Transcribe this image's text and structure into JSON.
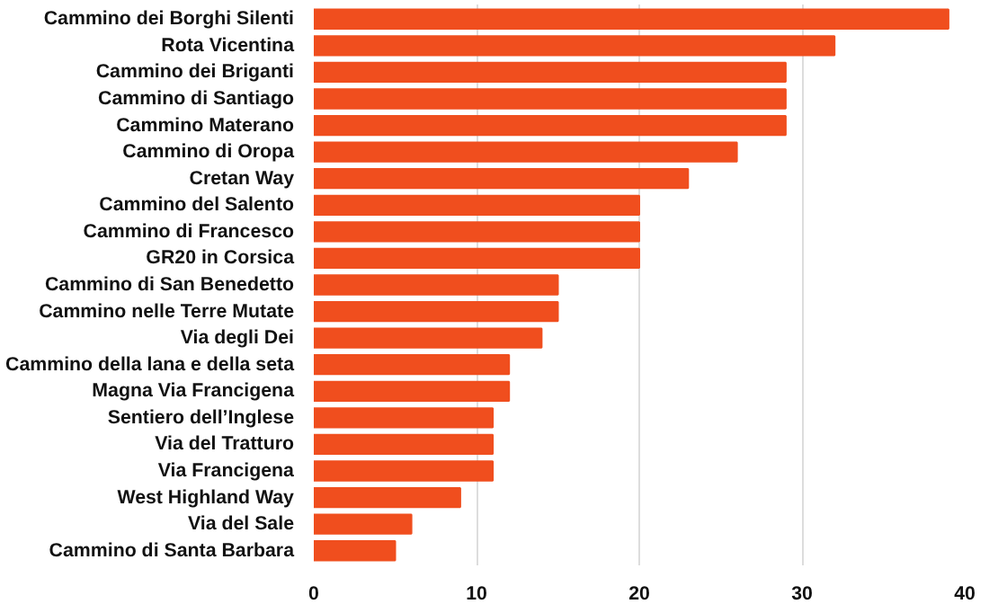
{
  "chart_data": {
    "type": "bar",
    "orientation": "horizontal",
    "categories": [
      "Cammino dei Borghi Silenti",
      "Rota Vicentina",
      "Cammino dei Briganti",
      "Cammino di Santiago",
      "Cammino Materano",
      "Cammino di Oropa",
      "Cretan Way",
      "Cammino del Salento",
      "Cammino di Francesco",
      "GR20 in Corsica",
      "Cammino di San Benedetto",
      "Cammino nelle Terre Mutate",
      "Via degli Dei",
      "Cammino della lana e della seta",
      "Magna Via Francigena",
      "Sentiero dell’Inglese",
      "Via del Tratturo",
      "Via Francigena",
      "West Highland Way",
      "Via del Sale",
      "Cammino di Santa Barbara"
    ],
    "values": [
      39,
      32,
      29,
      29,
      29,
      26,
      23,
      20,
      20,
      20,
      15,
      15,
      14,
      12,
      12,
      11,
      11,
      11,
      9,
      6,
      5
    ],
    "color": "#f04e1e",
    "xlim": [
      0,
      40
    ],
    "xticks": [
      0,
      10,
      20,
      30,
      40
    ],
    "grid": "x"
  }
}
